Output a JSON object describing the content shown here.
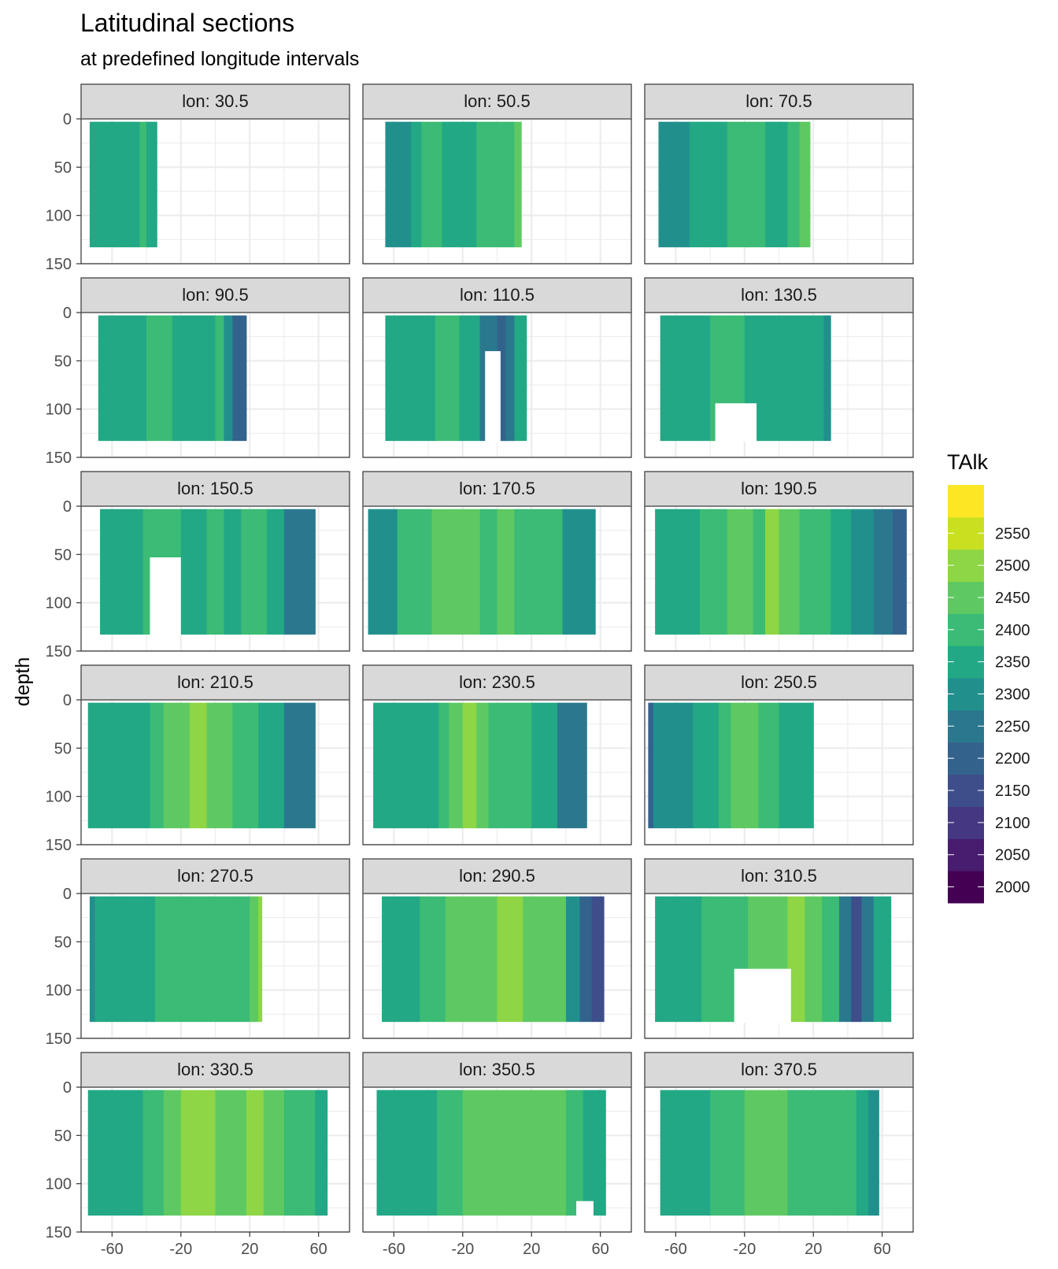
{
  "chart_data": {
    "type": "heatmap",
    "title": "Latitudinal sections",
    "subtitle": "at predefined longitude intervals",
    "xlabel": "",
    "ylabel": "depth",
    "xlim": [
      -78,
      78
    ],
    "ylim": [
      0,
      150
    ],
    "y_reversed": true,
    "x_ticks": [
      -60,
      -20,
      20,
      60
    ],
    "y_ticks": [
      0,
      50,
      100,
      150
    ],
    "facet_label_prefix": "lon: ",
    "legend": {
      "title": "TAlk",
      "placement": "right",
      "labels": [
        2550,
        2500,
        2450,
        2400,
        2350,
        2300,
        2250,
        2200,
        2150,
        2100,
        2050,
        2000
      ],
      "bins": [
        {
          "from": 1975,
          "to": 2025,
          "color": "#440154"
        },
        {
          "from": 2025,
          "to": 2075,
          "color": "#481c6e"
        },
        {
          "from": 2075,
          "to": 2125,
          "color": "#453781"
        },
        {
          "from": 2125,
          "to": 2175,
          "color": "#3d4e8a"
        },
        {
          "from": 2175,
          "to": 2225,
          "color": "#33638d"
        },
        {
          "from": 2225,
          "to": 2275,
          "color": "#2a788e"
        },
        {
          "from": 2275,
          "to": 2325,
          "color": "#21908d"
        },
        {
          "from": 2325,
          "to": 2375,
          "color": "#22a884"
        },
        {
          "from": 2375,
          "to": 2425,
          "color": "#3bbb75"
        },
        {
          "from": 2425,
          "to": 2475,
          "color": "#5ec962"
        },
        {
          "from": 2475,
          "to": 2525,
          "color": "#8ed645"
        },
        {
          "from": 2525,
          "to": 2575,
          "color": "#c8e020"
        },
        {
          "from": 2575,
          "to": 2625,
          "color": "#fde725"
        }
      ]
    },
    "panels": [
      {
        "label": "30.5",
        "lat_range": [
          -73,
          -34
        ],
        "depth_max": 133,
        "gaps": [],
        "lat": [
          -73,
          -60,
          -48,
          -44,
          -40,
          -34
        ],
        "talk": [
          2325,
          2330,
          2345,
          2390,
          2360
        ]
      },
      {
        "label": "50.5",
        "lat_range": [
          -65,
          14
        ],
        "depth_max": 133,
        "gaps": [],
        "lat": [
          -65,
          -50,
          -44,
          -32,
          -12,
          5,
          10,
          14
        ],
        "talk": [
          2320,
          2350,
          2420,
          2360,
          2410,
          2390,
          2440
        ]
      },
      {
        "label": "70.5",
        "lat_range": [
          -70,
          18
        ],
        "depth_max": 133,
        "gaps": [],
        "lat": [
          -70,
          -56,
          -52,
          -43,
          -30,
          -18,
          -8,
          5,
          12,
          18
        ],
        "talk": [
          2320,
          2300,
          2330,
          2360,
          2410,
          2380,
          2350,
          2400,
          2470
        ]
      },
      {
        "label": "90.5",
        "lat_range": [
          -68,
          18
        ],
        "depth_max": 133,
        "gaps": [],
        "lat": [
          -68,
          -48,
          -40,
          -25,
          -10,
          0,
          5,
          10,
          18
        ],
        "talk": [
          2330,
          2360,
          2410,
          2360,
          2340,
          2380,
          2300,
          2200
        ]
      },
      {
        "label": "110.5",
        "lat_range": [
          -65,
          17
        ],
        "depth_max": 133,
        "gaps": [
          {
            "lat": [
              -7,
              2
            ],
            "depth": [
              40,
              133
            ]
          }
        ],
        "lat": [
          -65,
          -50,
          -36,
          -22,
          -10,
          0,
          5,
          10,
          17
        ],
        "talk": [
          2330,
          2360,
          2420,
          2370,
          2230,
          2200,
          2270,
          2330
        ]
      },
      {
        "label": "130.5",
        "lat_range": [
          -69,
          30
        ],
        "depth_max": 133,
        "gaps": [
          {
            "lat": [
              -37,
              -13
            ],
            "depth": [
              94,
              133
            ]
          }
        ],
        "lat": [
          -69,
          -46,
          -40,
          -33,
          -20,
          -10,
          -4,
          8,
          20,
          26,
          30
        ],
        "talk": [
          2330,
          2360,
          2400,
          2380,
          2340,
          2360,
          2370,
          2340,
          2360,
          2300
        ]
      },
      {
        "label": "150.5",
        "lat_range": [
          -67,
          58
        ],
        "depth_max": 133,
        "gaps": [
          {
            "lat": [
              -38,
              -20
            ],
            "depth": [
              53,
              133
            ]
          }
        ],
        "lat": [
          -67,
          -42,
          -20,
          -5,
          5,
          15,
          30,
          40,
          58
        ],
        "talk": [
          2330,
          2420,
          2360,
          2390,
          2350,
          2380,
          2360,
          2260
        ]
      },
      {
        "label": "170.5",
        "lat_range": [
          -75,
          57
        ],
        "depth_max": 133,
        "gaps": [],
        "lat": [
          -75,
          -58,
          -38,
          -25,
          -10,
          0,
          10,
          25,
          38,
          57
        ],
        "talk": [
          2320,
          2380,
          2430,
          2450,
          2410,
          2440,
          2420,
          2380,
          2320
        ]
      },
      {
        "label": "190.5",
        "lat_range": [
          -72,
          74
        ],
        "depth_max": 133,
        "gaps": [],
        "lat": [
          -72,
          -46,
          -30,
          -15,
          -8,
          0,
          12,
          30,
          42,
          55,
          66,
          74
        ],
        "talk": [
          2330,
          2380,
          2430,
          2400,
          2480,
          2430,
          2400,
          2350,
          2300,
          2250,
          2200
        ]
      },
      {
        "label": "210.5",
        "lat_range": [
          -74,
          58
        ],
        "depth_max": 133,
        "gaps": [],
        "lat": [
          -74,
          -38,
          -30,
          -22,
          -15,
          -5,
          10,
          25,
          40,
          58
        ],
        "talk": [
          2330,
          2380,
          2430,
          2460,
          2490,
          2440,
          2380,
          2340,
          2270
        ]
      },
      {
        "label": "230.5",
        "lat_range": [
          -72,
          52
        ],
        "depth_max": 133,
        "gaps": [],
        "lat": [
          -72,
          -34,
          -28,
          -20,
          -12,
          -5,
          10,
          20,
          35,
          52
        ],
        "talk": [
          2330,
          2390,
          2440,
          2500,
          2450,
          2420,
          2400,
          2330,
          2270
        ]
      },
      {
        "label": "250.5",
        "lat_range": [
          -76,
          20
        ],
        "depth_max": 133,
        "gaps": [],
        "lat": [
          -76,
          -73,
          -50,
          -35,
          -28,
          -20,
          -12,
          0,
          10,
          20
        ],
        "talk": [
          2200,
          2320,
          2360,
          2400,
          2460,
          2430,
          2400,
          2370,
          2340
        ]
      },
      {
        "label": "270.5",
        "lat_range": [
          -73,
          27
        ],
        "depth_max": 133,
        "gaps": [],
        "lat": [
          -73,
          -70,
          -55,
          -35,
          -15,
          0,
          10,
          20,
          25,
          27
        ],
        "talk": [
          2280,
          2340,
          2370,
          2400,
          2420,
          2400,
          2380,
          2440,
          2490
        ]
      },
      {
        "label": "290.5",
        "lat_range": [
          -67,
          62
        ],
        "depth_max": 133,
        "gaps": [],
        "lat": [
          -67,
          -45,
          -30,
          -15,
          0,
          15,
          30,
          40,
          48,
          55,
          62
        ],
        "talk": [
          2340,
          2380,
          2430,
          2460,
          2490,
          2460,
          2440,
          2300,
          2200,
          2150
        ]
      },
      {
        "label": "310.5",
        "lat_range": [
          -72,
          65
        ],
        "depth_max": 133,
        "gaps": [
          {
            "lat": [
              -26,
              7
            ],
            "depth": [
              78,
              133
            ]
          }
        ],
        "lat": [
          -72,
          -45,
          -30,
          -18,
          -5,
          5,
          15,
          25,
          35,
          42,
          48,
          55,
          65
        ],
        "talk": [
          2340,
          2380,
          2420,
          2450,
          2470,
          2520,
          2470,
          2380,
          2260,
          2150,
          2250,
          2340
        ]
      },
      {
        "label": "330.5",
        "lat_range": [
          -74,
          65
        ],
        "depth_max": 133,
        "gaps": [],
        "lat": [
          -74,
          -42,
          -30,
          -20,
          -10,
          0,
          10,
          18,
          28,
          40,
          50,
          58,
          65
        ],
        "talk": [
          2330,
          2400,
          2450,
          2520,
          2480,
          2440,
          2470,
          2520,
          2440,
          2400,
          2380,
          2350
        ]
      },
      {
        "label": "350.5",
        "lat_range": [
          -70,
          63
        ],
        "depth_max": 133,
        "gaps": [
          {
            "lat": [
              46,
              56
            ],
            "depth": [
              118,
              133
            ]
          }
        ],
        "lat": [
          -70,
          -50,
          -35,
          -20,
          -5,
          10,
          25,
          40,
          50,
          63
        ],
        "talk": [
          2330,
          2370,
          2420,
          2470,
          2450,
          2470,
          2440,
          2400,
          2340
        ]
      },
      {
        "label": "370.5",
        "lat_range": [
          -69,
          58
        ],
        "depth_max": 133,
        "gaps": [],
        "lat": [
          -69,
          -40,
          -20,
          -5,
          5,
          20,
          35,
          45,
          52,
          58
        ],
        "talk": [
          2330,
          2380,
          2430,
          2440,
          2420,
          2400,
          2380,
          2350,
          2300
        ]
      }
    ]
  }
}
